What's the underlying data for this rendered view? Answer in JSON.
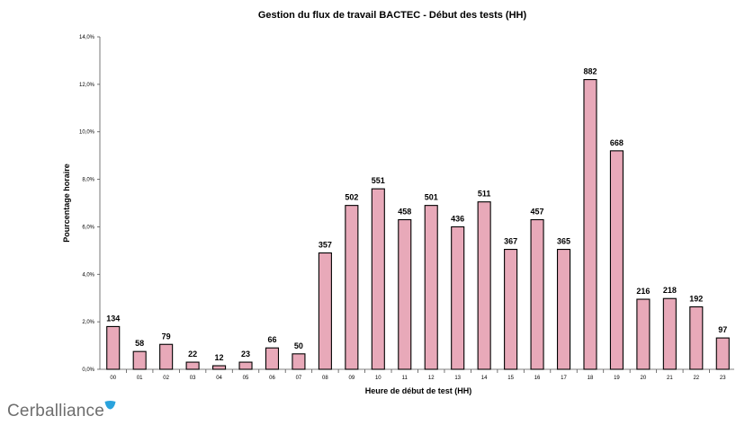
{
  "chart_data": {
    "type": "bar",
    "title": "Gestion du flux de travail BACTEC - Début des tests (HH)",
    "xlabel": "Heure de début de test (HH)",
    "ylabel": "Pourcentage horaire",
    "ylim": [
      0,
      14
    ],
    "yticks": [
      "0,0%",
      "2,0%",
      "4,0%",
      "6,0%",
      "8,0%",
      "10,0%",
      "12,0%",
      "14,0%"
    ],
    "categories": [
      "00",
      "01",
      "02",
      "03",
      "04",
      "05",
      "06",
      "07",
      "08",
      "09",
      "10",
      "11",
      "12",
      "13",
      "14",
      "15",
      "16",
      "17",
      "18",
      "19",
      "20",
      "21",
      "22",
      "23"
    ],
    "values": [
      1.8,
      0.75,
      1.05,
      0.3,
      0.15,
      0.3,
      0.9,
      0.65,
      4.9,
      6.9,
      7.6,
      6.3,
      6.9,
      6.0,
      7.05,
      5.05,
      6.3,
      5.05,
      12.2,
      9.2,
      2.95,
      2.98,
      2.63,
      1.32
    ],
    "data_labels": [
      "134",
      "58",
      "79",
      "22",
      "12",
      "23",
      "66",
      "50",
      "357",
      "502",
      "551",
      "458",
      "501",
      "436",
      "511",
      "367",
      "457",
      "365",
      "882",
      "668",
      "216",
      "218",
      "192",
      "97"
    ],
    "bar_color": "#e8a9b9",
    "bar_stroke": "#000000",
    "grid": false
  },
  "branding": {
    "logo_text": "Cerballiance",
    "logo_accent_color": "#2aa3dd"
  }
}
